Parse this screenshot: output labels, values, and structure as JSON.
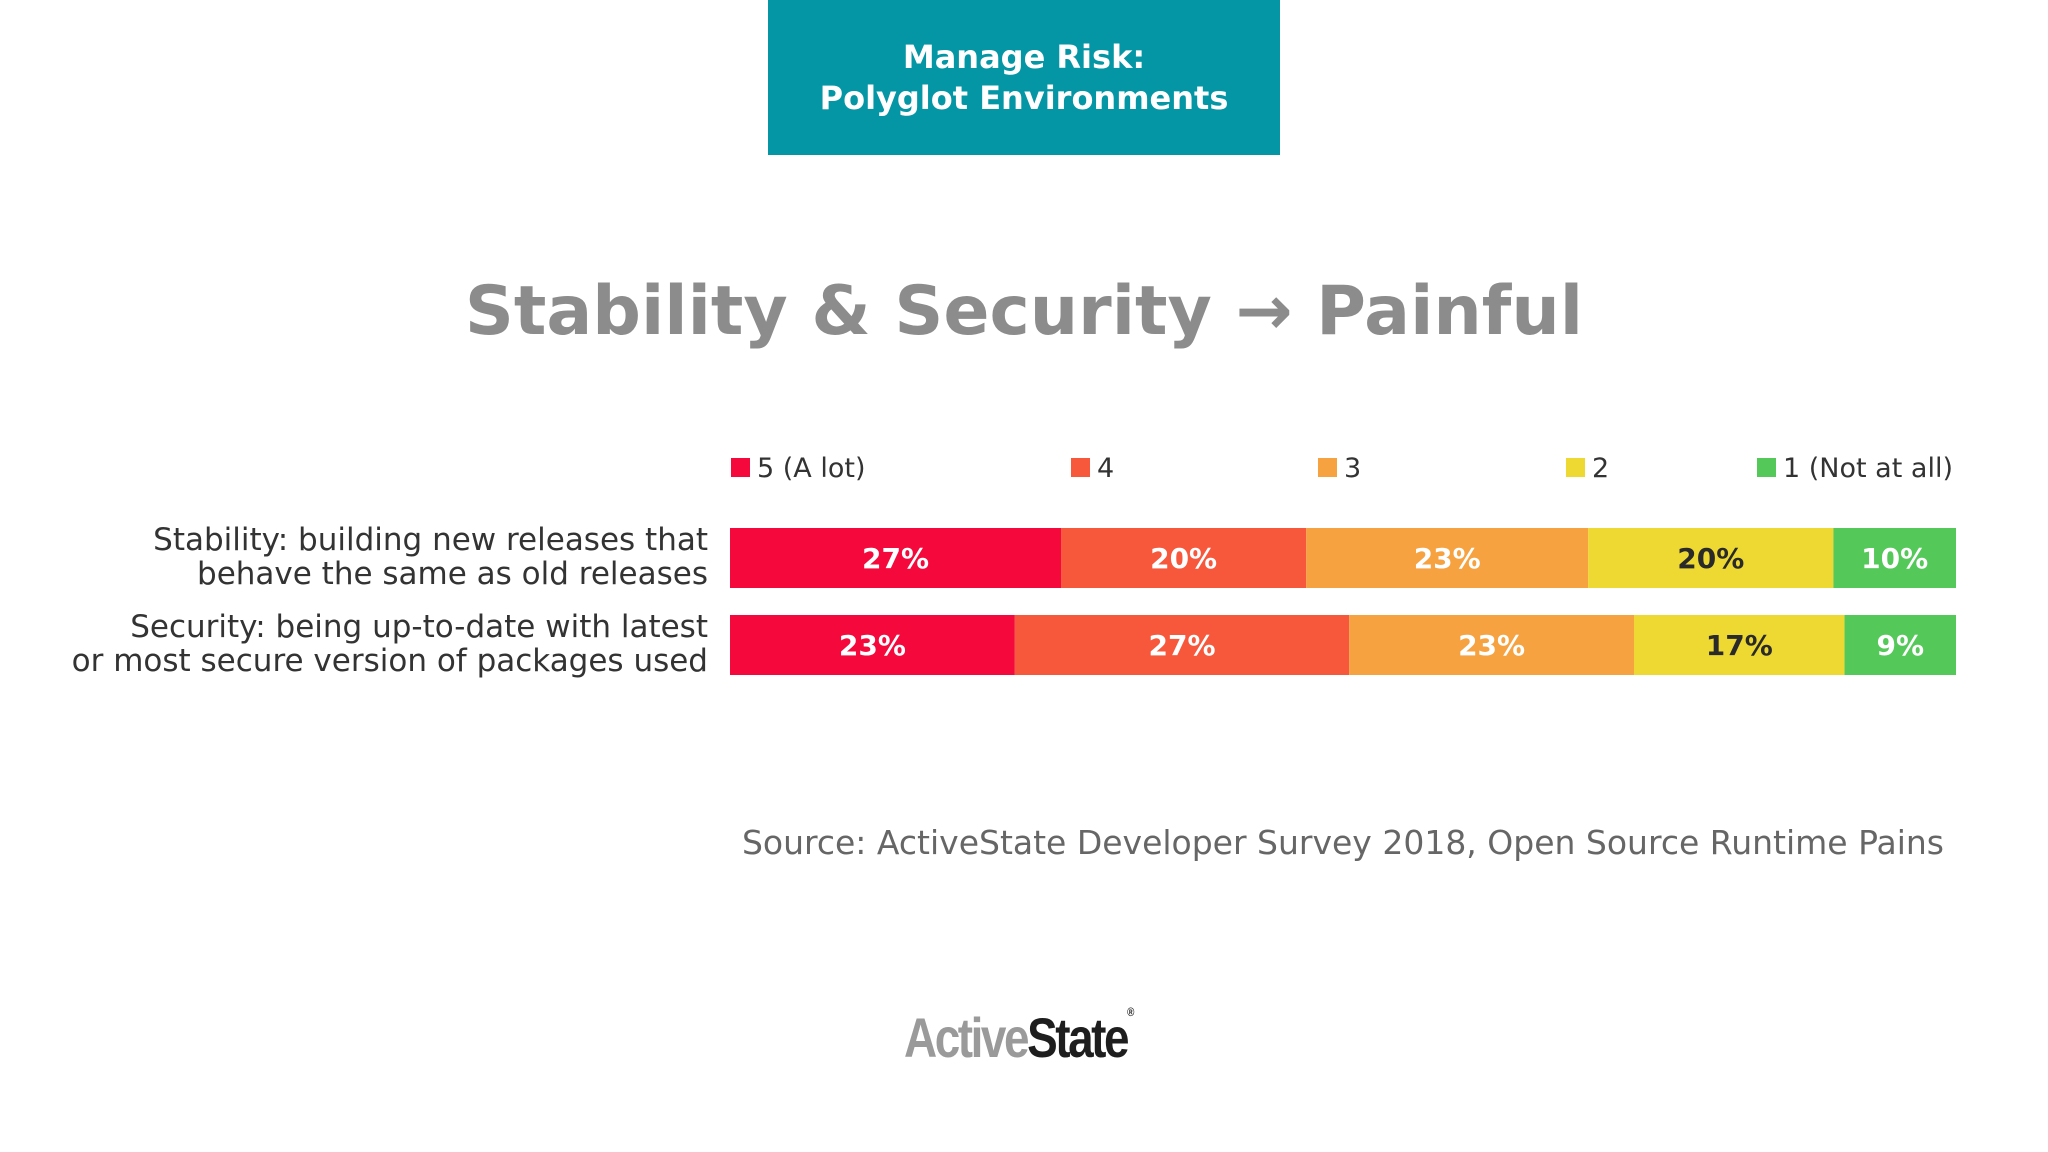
{
  "header": {
    "line1": "Manage Risk:",
    "line2": "Polyglot Environments",
    "background_color": "#0596a5"
  },
  "slide_title": "Stability & Security → Painful",
  "source": "Source: ActiveState Developer Survey 2018, Open Source Runtime Pains",
  "logo": {
    "part1": "Active",
    "part2": "State",
    "mark": "®"
  },
  "chart_data": {
    "type": "bar",
    "orientation": "horizontal",
    "stacked": true,
    "title": "",
    "xlabel": "",
    "ylabel": "",
    "legend_position": "top",
    "grid": false,
    "categories": [
      [
        "Stability: building new releases that",
        "behave the same as old releases"
      ],
      [
        "Security: being up-to-date with latest",
        "or most secure version of packages used"
      ]
    ],
    "series": [
      {
        "name": "5 (A lot)",
        "color": "#f5083b",
        "label_color": "#ffffff",
        "values": [
          27,
          23
        ],
        "labels": [
          "27%",
          "23%"
        ]
      },
      {
        "name": "4",
        "color": "#f7583c",
        "label_color": "#ffffff",
        "values": [
          20,
          27
        ],
        "labels": [
          "20%",
          "27%"
        ]
      },
      {
        "name": "3",
        "color": "#f6a240",
        "label_color": "#ffffff",
        "values": [
          23,
          23
        ],
        "labels": [
          "23%",
          "23%"
        ]
      },
      {
        "name": "2",
        "color": "#eed832",
        "label_color": "#2a2a2a",
        "values": [
          20,
          17
        ],
        "labels": [
          "20%",
          "17%"
        ]
      },
      {
        "name": "1 (Not at all)",
        "color": "#55c85a",
        "label_color": "#ffffff",
        "values": [
          10,
          9
        ],
        "labels": [
          "10%",
          "9%"
        ]
      }
    ]
  }
}
